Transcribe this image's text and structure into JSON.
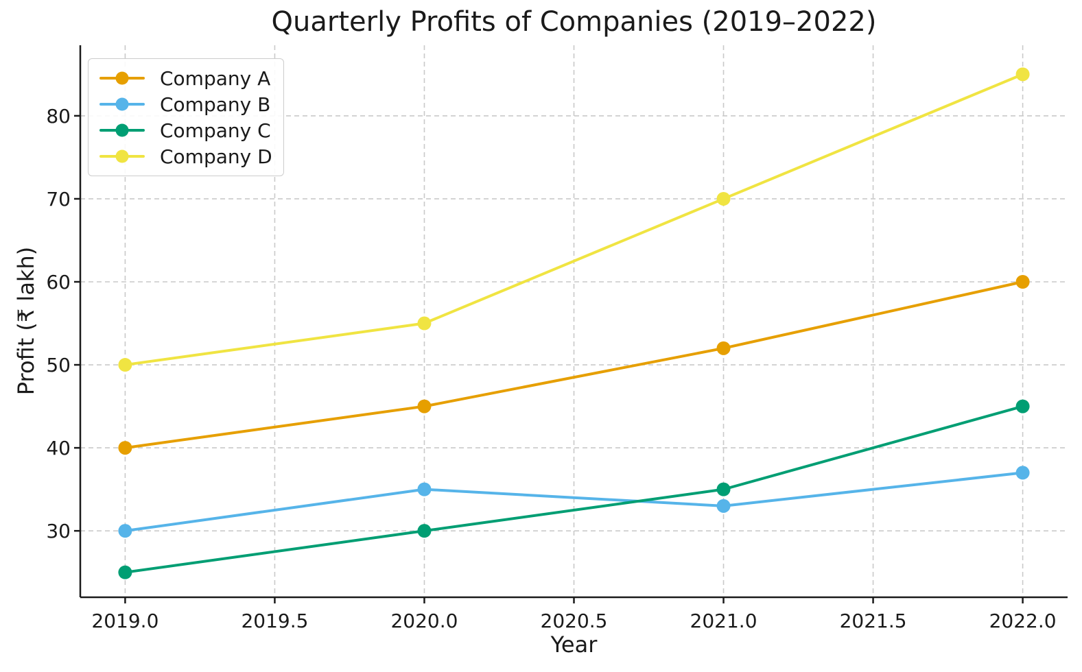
{
  "chart_data": {
    "type": "line",
    "title": "Quarterly Profits of Companies (2019–2022)",
    "xlabel": "Year",
    "ylabel": "Profit (₹ lakh)",
    "x": [
      2019,
      2020,
      2021,
      2022
    ],
    "series": [
      {
        "name": "Company A",
        "color": "#E69F00",
        "values": [
          40,
          45,
          52,
          60
        ]
      },
      {
        "name": "Company B",
        "color": "#56B4E9",
        "values": [
          30,
          35,
          33,
          37
        ]
      },
      {
        "name": "Company C",
        "color": "#009E73",
        "values": [
          25,
          30,
          35,
          45
        ]
      },
      {
        "name": "Company D",
        "color": "#F0E442",
        "values": [
          50,
          55,
          70,
          85
        ]
      }
    ],
    "x_ticks": {
      "values": [
        2019.0,
        2019.5,
        2020.0,
        2020.5,
        2021.0,
        2021.5,
        2022.0
      ],
      "labels": [
        "2019.0",
        "2019.5",
        "2020.0",
        "2020.5",
        "2021.0",
        "2021.5",
        "2022.0"
      ]
    },
    "y_ticks": {
      "values": [
        30,
        40,
        50,
        60,
        70,
        80
      ],
      "labels": [
        "30",
        "40",
        "50",
        "60",
        "70",
        "80"
      ]
    },
    "xlim": [
      2018.85,
      2022.15
    ],
    "ylim": [
      22,
      88.5
    ],
    "grid": {
      "visible": true,
      "style": "dashed",
      "color": "#c9c9c9"
    },
    "legend": {
      "position": "upper-left",
      "border_color": "#cccccc"
    },
    "marker": "circle",
    "line_width": 4,
    "marker_radius": 10,
    "colors": {
      "text": "#1a1a1a",
      "spine": "#1a1a1a",
      "background": "#ffffff"
    }
  }
}
